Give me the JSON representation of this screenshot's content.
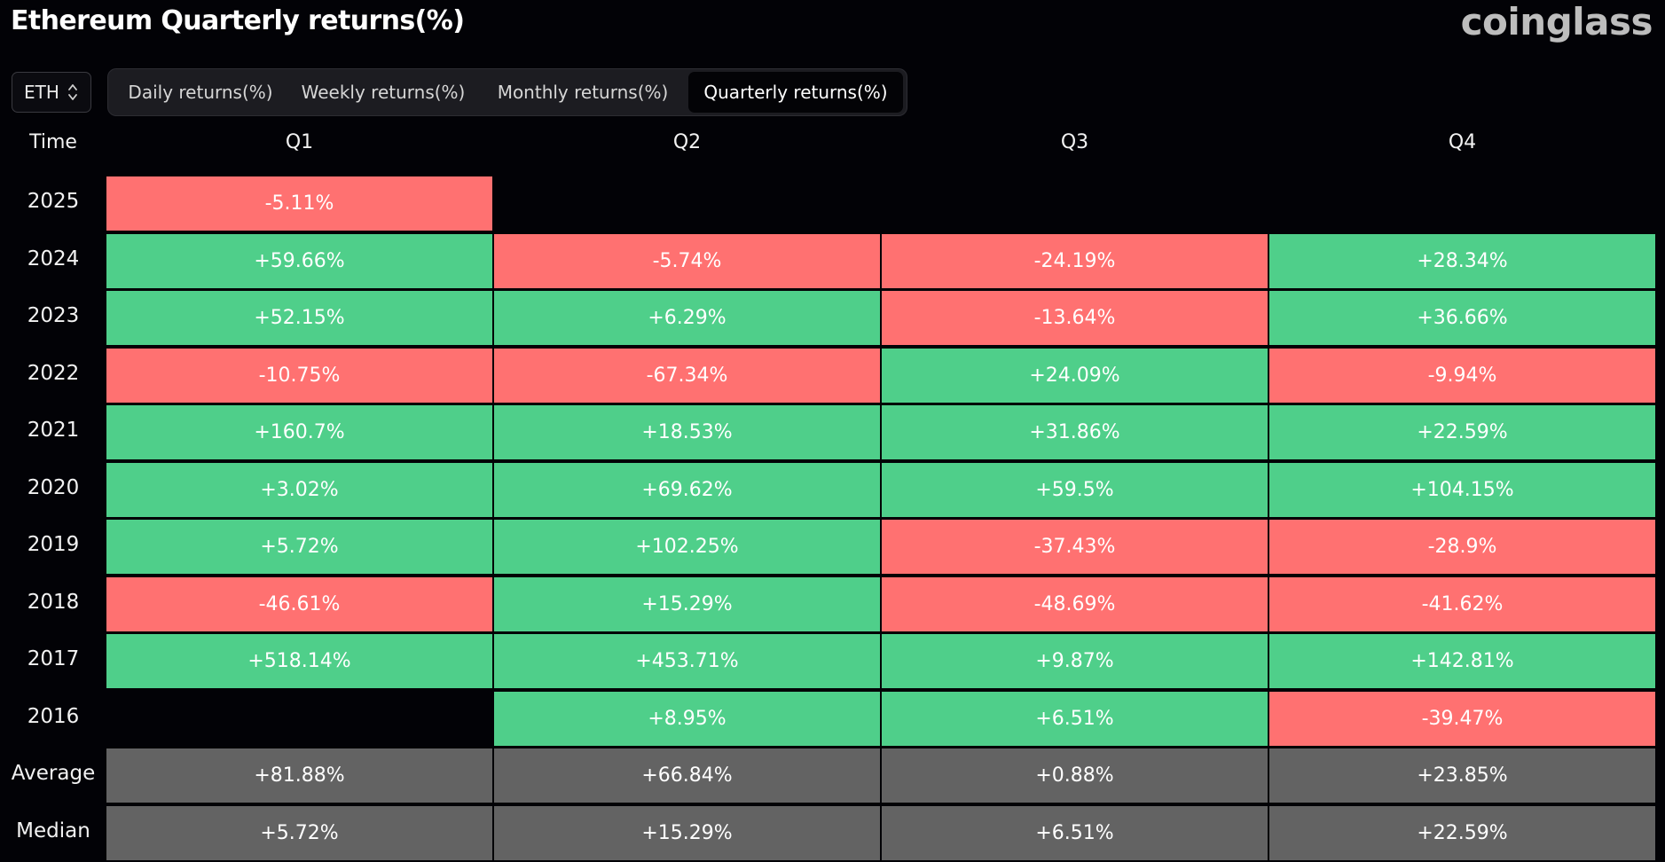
{
  "header": {
    "title": "Ethereum Quarterly returns(%)",
    "logo_text": "coinglass"
  },
  "symbol_select": {
    "value": "ETH",
    "icon": "chevron-up-down-icon"
  },
  "tabs": [
    {
      "label": "Daily returns(%)",
      "active": false
    },
    {
      "label": "Weekly returns(%)",
      "active": false
    },
    {
      "label": "Monthly returns(%)",
      "active": false
    },
    {
      "label": "Quarterly returns(%)",
      "active": true
    }
  ],
  "colors": {
    "positive": "#4fcf8a",
    "negative": "#ff7171",
    "summary": "#636363",
    "background": "#020206"
  },
  "table": {
    "corner_header": "Time",
    "columns": [
      "Q1",
      "Q2",
      "Q3",
      "Q4"
    ],
    "rows": [
      {
        "label": "2025",
        "type": "year",
        "values": [
          "-5.11%",
          null,
          null,
          null
        ]
      },
      {
        "label": "2024",
        "type": "year",
        "values": [
          "+59.66%",
          "-5.74%",
          "-24.19%",
          "+28.34%"
        ]
      },
      {
        "label": "2023",
        "type": "year",
        "values": [
          "+52.15%",
          "+6.29%",
          "-13.64%",
          "+36.66%"
        ]
      },
      {
        "label": "2022",
        "type": "year",
        "values": [
          "-10.75%",
          "-67.34%",
          "+24.09%",
          "-9.94%"
        ]
      },
      {
        "label": "2021",
        "type": "year",
        "values": [
          "+160.7%",
          "+18.53%",
          "+31.86%",
          "+22.59%"
        ]
      },
      {
        "label": "2020",
        "type": "year",
        "values": [
          "+3.02%",
          "+69.62%",
          "+59.5%",
          "+104.15%"
        ]
      },
      {
        "label": "2019",
        "type": "year",
        "values": [
          "+5.72%",
          "+102.25%",
          "-37.43%",
          "-28.9%"
        ]
      },
      {
        "label": "2018",
        "type": "year",
        "values": [
          "-46.61%",
          "+15.29%",
          "-48.69%",
          "-41.62%"
        ]
      },
      {
        "label": "2017",
        "type": "year",
        "values": [
          "+518.14%",
          "+453.71%",
          "+9.87%",
          "+142.81%"
        ]
      },
      {
        "label": "2016",
        "type": "year",
        "values": [
          null,
          "+8.95%",
          "+6.51%",
          "-39.47%"
        ]
      },
      {
        "label": "Average",
        "type": "summary",
        "values": [
          "+81.88%",
          "+66.84%",
          "+0.88%",
          "+23.85%"
        ]
      },
      {
        "label": "Median",
        "type": "summary",
        "values": [
          "+5.72%",
          "+15.29%",
          "+6.51%",
          "+22.59%"
        ]
      }
    ]
  }
}
